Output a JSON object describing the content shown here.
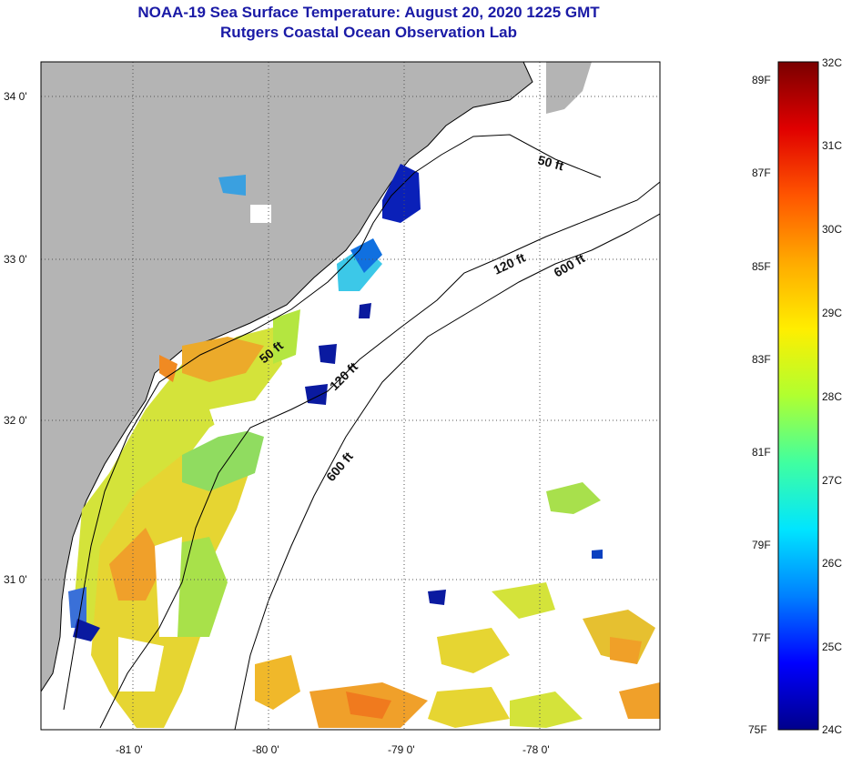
{
  "title": {
    "line1": "NOAA-19 Sea Surface Temperature:  August 20, 2020 1225 GMT",
    "line2": "Rutgers Coastal Ocean Observation Lab"
  },
  "map": {
    "lat_labels": [
      "34 0'",
      "33 0'",
      "32 0'",
      "31 0'"
    ],
    "lon_labels": [
      "-81 0'",
      "-80 0'",
      "-79 0'",
      "-78 0'"
    ],
    "land_color": "#b4b4b4",
    "contour_labels": [
      "50 ft",
      "120 ft",
      "600 ft",
      "50 ft",
      "120 ft",
      "600 ft"
    ]
  },
  "colorbar": {
    "fahrenheit_labels": [
      "89F",
      "87F",
      "85F",
      "83F",
      "81F",
      "79F",
      "77F",
      "75F"
    ],
    "celsius_labels": [
      "32C",
      "31C",
      "30C",
      "29C",
      "28C",
      "27C",
      "26C",
      "25C",
      "24C"
    ],
    "colors": [
      "#00008b",
      "#0000ff",
      "#0080ff",
      "#00e5ff",
      "#40ffa0",
      "#b0ff30",
      "#ffee00",
      "#ffaa00",
      "#ff5500",
      "#e00000",
      "#7a0000"
    ]
  }
}
